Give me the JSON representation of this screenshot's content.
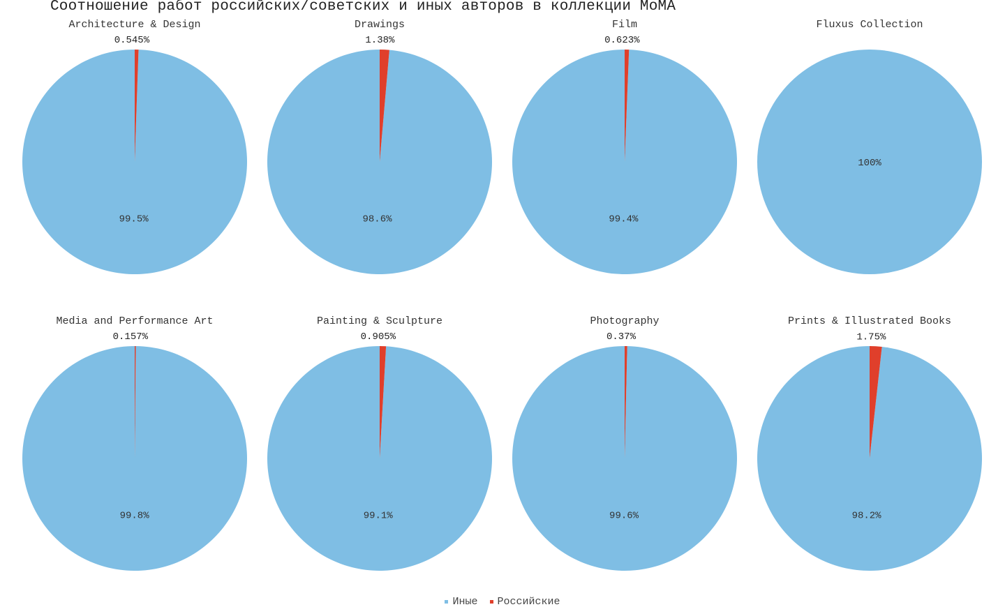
{
  "title": "Соотношение работ российских/советских и иных авторов в коллекции MoMA",
  "colors": {
    "other": "#7fbee4",
    "russian": "#e03f2b"
  },
  "legend": {
    "other_label": "Иные",
    "russian_label": "Российские"
  },
  "chart_data": [
    {
      "type": "pie",
      "title": "Architecture & Design",
      "labels": [
        "Иные",
        "Российские"
      ],
      "values": [
        99.455,
        0.545
      ],
      "data_labels": [
        "99.5%",
        "0.545%"
      ]
    },
    {
      "type": "pie",
      "title": "Drawings",
      "labels": [
        "Иные",
        "Российские"
      ],
      "values": [
        98.62,
        1.38
      ],
      "data_labels": [
        "98.6%",
        "1.38%"
      ]
    },
    {
      "type": "pie",
      "title": "Film",
      "labels": [
        "Иные",
        "Российские"
      ],
      "values": [
        99.377,
        0.623
      ],
      "data_labels": [
        "99.4%",
        "0.623%"
      ]
    },
    {
      "type": "pie",
      "title": "Fluxus Collection",
      "labels": [
        "Иные",
        "Российские"
      ],
      "values": [
        100,
        0
      ],
      "data_labels": [
        "100%",
        ""
      ]
    },
    {
      "type": "pie",
      "title": "Media and Performance Art",
      "labels": [
        "Иные",
        "Российские"
      ],
      "values": [
        99.843,
        0.157
      ],
      "data_labels": [
        "99.8%",
        "0.157%"
      ]
    },
    {
      "type": "pie",
      "title": "Painting & Sculpture",
      "labels": [
        "Иные",
        "Российские"
      ],
      "values": [
        99.095,
        0.905
      ],
      "data_labels": [
        "99.1%",
        "0.905%"
      ]
    },
    {
      "type": "pie",
      "title": "Photography",
      "labels": [
        "Иные",
        "Российские"
      ],
      "values": [
        99.63,
        0.37
      ],
      "data_labels": [
        "99.6%",
        "0.37%"
      ]
    },
    {
      "type": "pie",
      "title": "Prints & Illustrated Books",
      "labels": [
        "Иные",
        "Российские"
      ],
      "values": [
        98.25,
        1.75
      ],
      "data_labels": [
        "98.2%",
        "1.75%"
      ]
    }
  ]
}
